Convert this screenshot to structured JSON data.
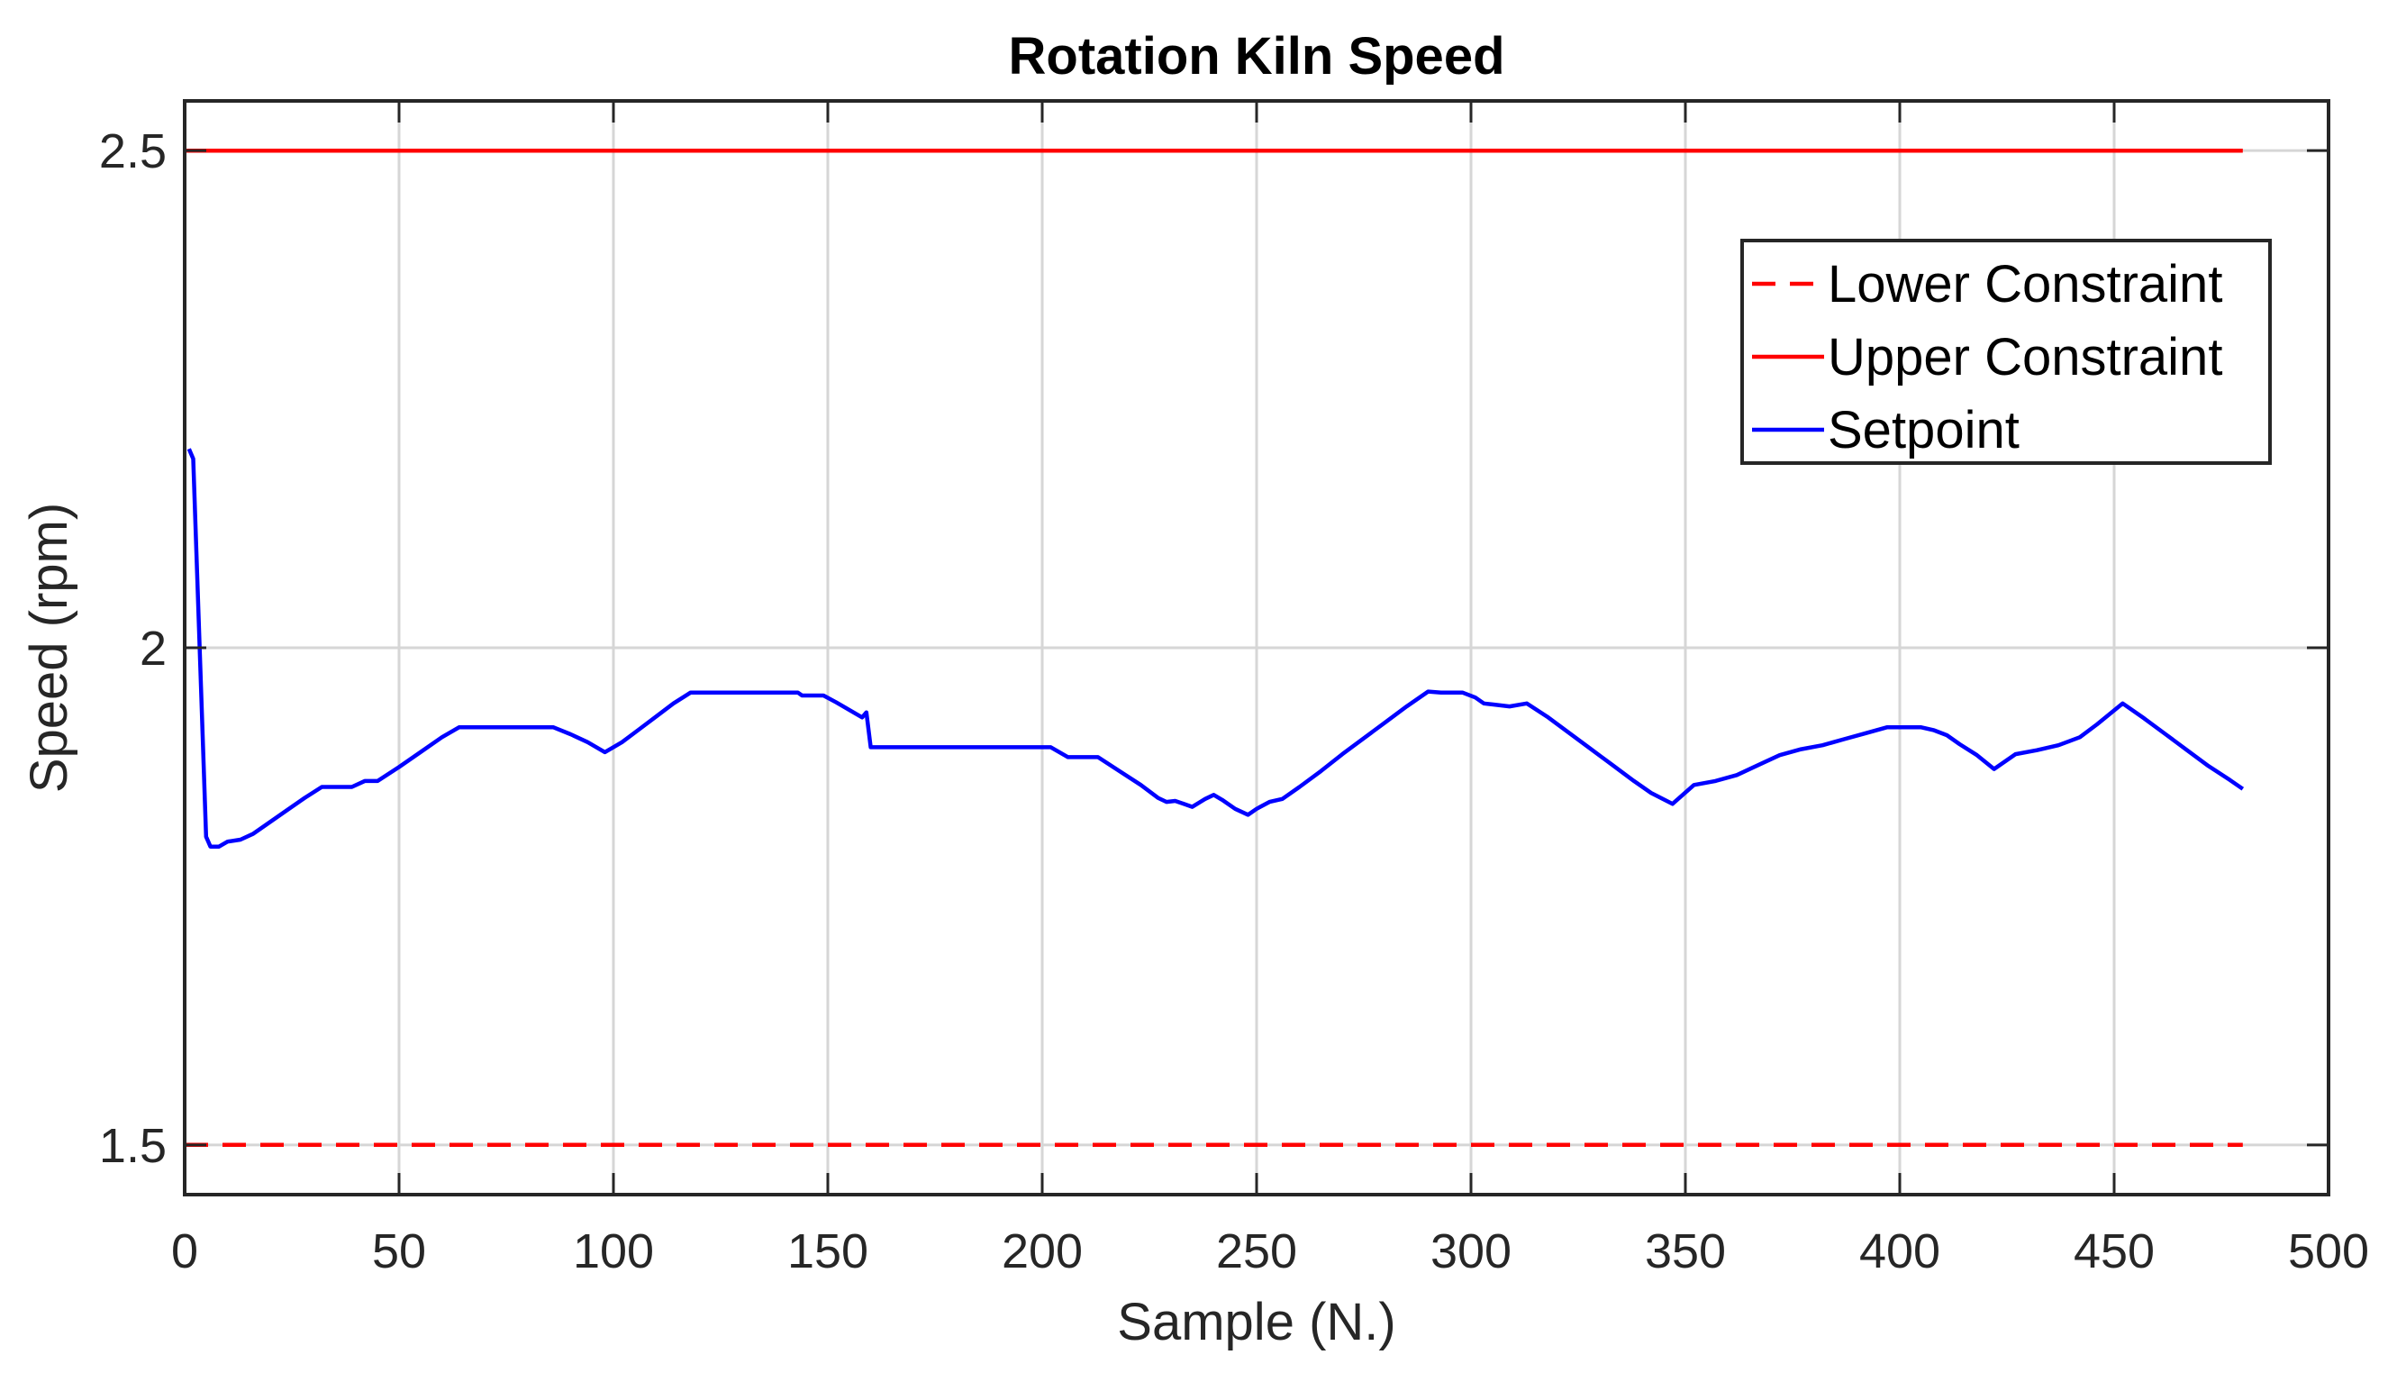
{
  "chart_data": {
    "type": "line",
    "title": "Rotation Kiln Speed",
    "xlabel": "Sample (N.)",
    "ylabel": "Speed (rpm)",
    "xlim": [
      0,
      500
    ],
    "ylim": [
      1.45,
      2.55
    ],
    "x_ticks": [
      0,
      50,
      100,
      150,
      200,
      250,
      300,
      350,
      400,
      450,
      500
    ],
    "y_ticks": [
      1.5,
      2,
      2.5
    ],
    "y_tick_labels": [
      "1.5",
      "2",
      "2.5"
    ],
    "grid": true,
    "legend_position": "top-right",
    "colors": {
      "lower": "#ff0000",
      "upper": "#ff0000",
      "setpoint": "#0000ff"
    },
    "series": [
      {
        "name": "Lower Constraint",
        "style": "dashed",
        "color": "#ff0000",
        "x": [
          0,
          480
        ],
        "y": [
          1.5,
          1.5
        ]
      },
      {
        "name": "Upper Constraint",
        "style": "solid",
        "color": "#ff0000",
        "x": [
          0,
          480
        ],
        "y": [
          2.5,
          2.5
        ]
      },
      {
        "name": "Setpoint",
        "style": "solid",
        "color": "#0000ff",
        "x": [
          1,
          2,
          5,
          6,
          7,
          8,
          10,
          13,
          16,
          20,
          24,
          28,
          32,
          35,
          39,
          42,
          45,
          50,
          55,
          60,
          64,
          70,
          75,
          80,
          86,
          90,
          94,
          98,
          102,
          106,
          110,
          114,
          118,
          125,
          130,
          136,
          143,
          144,
          149,
          152,
          158,
          159,
          160,
          165,
          170,
          180,
          190,
          200,
          202,
          206,
          213,
          218,
          223,
          227,
          229,
          231,
          233,
          235,
          238,
          240,
          242,
          245,
          248,
          250,
          253,
          256,
          260,
          265,
          270,
          275,
          280,
          285,
          290,
          293,
          298,
          301,
          303,
          305,
          309,
          313,
          318,
          323,
          328,
          333,
          338,
          342,
          347,
          352,
          357,
          362,
          367,
          372,
          377,
          382,
          387,
          392,
          397,
          402,
          405,
          408,
          411,
          414,
          418,
          422,
          427,
          432,
          437,
          442,
          446,
          452,
          457,
          462,
          467,
          472,
          477,
          480
        ],
        "y": [
          2.2,
          2.19,
          1.81,
          1.8,
          1.8,
          1.8,
          1.805,
          1.807,
          1.813,
          1.825,
          1.837,
          1.849,
          1.86,
          1.86,
          1.86,
          1.866,
          1.866,
          1.88,
          1.895,
          1.91,
          1.92,
          1.92,
          1.92,
          1.92,
          1.92,
          1.913,
          1.905,
          1.895,
          1.905,
          1.918,
          1.931,
          1.944,
          1.955,
          1.955,
          1.955,
          1.955,
          1.955,
          1.952,
          1.952,
          1.945,
          1.93,
          1.935,
          1.9,
          1.9,
          1.9,
          1.9,
          1.9,
          1.9,
          1.9,
          1.89,
          1.89,
          1.876,
          1.862,
          1.849,
          1.845,
          1.846,
          1.843,
          1.84,
          1.848,
          1.852,
          1.847,
          1.838,
          1.832,
          1.838,
          1.845,
          1.848,
          1.86,
          1.876,
          1.893,
          1.909,
          1.925,
          1.941,
          1.956,
          1.955,
          1.955,
          1.95,
          1.944,
          1.943,
          1.941,
          1.944,
          1.93,
          1.914,
          1.898,
          1.882,
          1.866,
          1.854,
          1.843,
          1.862,
          1.866,
          1.872,
          1.882,
          1.892,
          1.898,
          1.902,
          1.908,
          1.914,
          1.92,
          1.92,
          1.92,
          1.917,
          1.912,
          1.903,
          1.892,
          1.878,
          1.893,
          1.897,
          1.902,
          1.91,
          1.923,
          1.944,
          1.929,
          1.913,
          1.897,
          1.881,
          1.867,
          1.858
        ]
      }
    ]
  }
}
